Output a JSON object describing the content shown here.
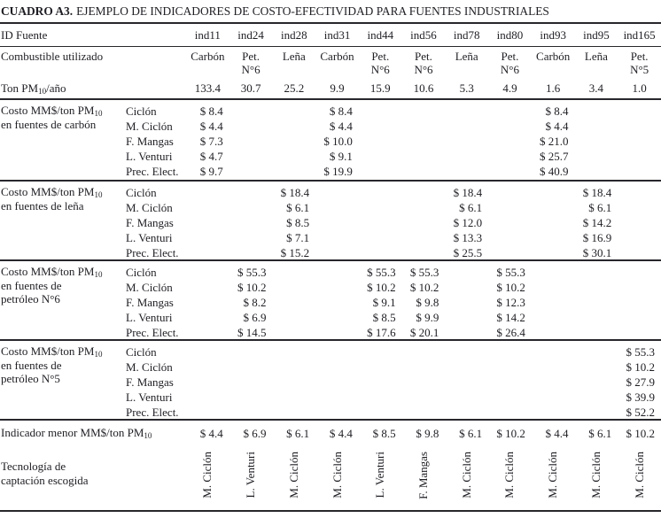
{
  "page": {
    "title_bold": "CUADRO A3.",
    "title_rest": "EJEMPLO DE INDICADORES DE COSTO-EFECTIVIDAD PARA FUENTES INDUSTRIALES"
  },
  "table": {
    "columns": [
      "ind11",
      "ind24",
      "ind28",
      "ind31",
      "ind44",
      "ind56",
      "ind78",
      "ind80",
      "ind93",
      "ind95",
      "ind165"
    ],
    "header": {
      "id_label": "ID Fuente",
      "fuel_label": "Combustible utilizado",
      "fuels": [
        [
          "Carbón"
        ],
        [
          "Pet.",
          "N°6"
        ],
        [
          "Leña"
        ],
        [
          "Carbón"
        ],
        [
          "Pet.",
          "N°6"
        ],
        [
          "Pet.",
          "N°6"
        ],
        [
          "Leña"
        ],
        [
          "Pet.",
          "N°6"
        ],
        [
          "Carbón"
        ],
        [
          "Leña"
        ],
        [
          "Pet.",
          "N°5"
        ]
      ],
      "ton_label": {
        "pre": "Ton PM",
        "sub": "10",
        "post": "/año"
      },
      "tons": [
        "133.4",
        "30.7",
        "25.2",
        "9.9",
        "15.9",
        "10.6",
        "5.3",
        "4.9",
        "1.6",
        "3.4",
        "1.0"
      ]
    },
    "sections": [
      {
        "label": {
          "pre": "Costo MM$/ton PM",
          "sub": "10",
          "rest": [
            "en fuentes de carbón"
          ]
        },
        "rows": [
          {
            "tech": "Ciclón",
            "values": [
              "$ 8.4",
              "",
              "",
              "$ 8.4",
              "",
              "",
              "",
              "",
              "$ 8.4",
              "",
              ""
            ]
          },
          {
            "tech": "M. Ciclón",
            "values": [
              "$ 4.4",
              "",
              "",
              "$ 4.4",
              "",
              "",
              "",
              "",
              "$ 4.4",
              "",
              ""
            ]
          },
          {
            "tech": "F. Mangas",
            "values": [
              "$ 7.3",
              "",
              "",
              "$ 10.0",
              "",
              "",
              "",
              "",
              "$ 21.0",
              "",
              ""
            ]
          },
          {
            "tech": "L. Venturi",
            "values": [
              "$ 4.7",
              "",
              "",
              "$ 9.1",
              "",
              "",
              "",
              "",
              "$ 25.7",
              "",
              ""
            ]
          },
          {
            "tech": "Prec. Elect.",
            "values": [
              "$ 9.7",
              "",
              "",
              "$ 19.9",
              "",
              "",
              "",
              "",
              "$ 40.9",
              "",
              ""
            ]
          }
        ]
      },
      {
        "label": {
          "pre": "Costo MM$/ton PM",
          "sub": "10",
          "rest": [
            "en fuentes de leña"
          ]
        },
        "rows": [
          {
            "tech": "Ciclón",
            "values": [
              "",
              "",
              "$ 18.4",
              "",
              "",
              "",
              "$ 18.4",
              "",
              "",
              "$ 18.4",
              ""
            ]
          },
          {
            "tech": "M. Ciclón",
            "values": [
              "",
              "",
              "$ 6.1",
              "",
              "",
              "",
              "$ 6.1",
              "",
              "",
              "$ 6.1",
              ""
            ]
          },
          {
            "tech": "F. Mangas",
            "values": [
              "",
              "",
              "$ 8.5",
              "",
              "",
              "",
              "$ 12.0",
              "",
              "",
              "$ 14.2",
              ""
            ]
          },
          {
            "tech": "L. Venturi",
            "values": [
              "",
              "",
              "$ 7.1",
              "",
              "",
              "",
              "$ 13.3",
              "",
              "",
              "$ 16.9",
              ""
            ]
          },
          {
            "tech": "Prec. Elect.",
            "values": [
              "",
              "",
              "$ 15.2",
              "",
              "",
              "",
              "$ 25.5",
              "",
              "",
              "$ 30.1",
              ""
            ]
          }
        ]
      },
      {
        "label": {
          "pre": "Costo MM$/ton PM",
          "sub": "10",
          "rest": [
            "en fuentes de",
            "petróleo N°6"
          ]
        },
        "rows": [
          {
            "tech": "Ciclón",
            "values": [
              "",
              "$ 55.3",
              "",
              "",
              "$ 55.3",
              "$ 55.3",
              "",
              "$ 55.3",
              "",
              "",
              ""
            ]
          },
          {
            "tech": "M. Ciclón",
            "values": [
              "",
              "$ 10.2",
              "",
              "",
              "$ 10.2",
              "$ 10.2",
              "",
              "$ 10.2",
              "",
              "",
              ""
            ]
          },
          {
            "tech": "F. Mangas",
            "values": [
              "",
              "$ 8.2",
              "",
              "",
              "$ 9.1",
              "$ 9.8",
              "",
              "$ 12.3",
              "",
              "",
              ""
            ]
          },
          {
            "tech": "L. Venturi",
            "values": [
              "",
              "$ 6.9",
              "",
              "",
              "$ 8.5",
              "$ 9.9",
              "",
              "$ 14.2",
              "",
              "",
              ""
            ]
          },
          {
            "tech": "Prec. Elect.",
            "values": [
              "",
              "$ 14.5",
              "",
              "",
              "$ 17.6",
              "$ 20.1",
              "",
              "$ 26.4",
              "",
              "",
              ""
            ]
          }
        ]
      },
      {
        "label": {
          "pre": "Costo MM$/ton PM",
          "sub": "10",
          "rest": [
            "en fuentes de",
            "petróleo N°5"
          ]
        },
        "rows": [
          {
            "tech": "Ciclón",
            "values": [
              "",
              "",
              "",
              "",
              "",
              "",
              "",
              "",
              "",
              "",
              "$ 55.3"
            ]
          },
          {
            "tech": "M. Ciclón",
            "values": [
              "",
              "",
              "",
              "",
              "",
              "",
              "",
              "",
              "",
              "",
              "$ 10.2"
            ]
          },
          {
            "tech": "F. Mangas",
            "values": [
              "",
              "",
              "",
              "",
              "",
              "",
              "",
              "",
              "",
              "",
              "$ 27.9"
            ]
          },
          {
            "tech": "L. Venturi",
            "values": [
              "",
              "",
              "",
              "",
              "",
              "",
              "",
              "",
              "",
              "",
              "$ 39.9"
            ]
          },
          {
            "tech": "Prec. Elect.",
            "values": [
              "",
              "",
              "",
              "",
              "",
              "",
              "",
              "",
              "",
              "",
              "$ 52.2"
            ]
          }
        ]
      }
    ],
    "indicator": {
      "label": {
        "pre": "Indicador menor MM$/ton PM",
        "sub": "10"
      },
      "values": [
        "$ 4.4",
        "$ 6.9",
        "$ 6.1",
        "$ 4.4",
        "$ 8.5",
        "$ 9.8",
        "$ 6.1",
        "$ 10.2",
        "$ 4.4",
        "$ 6.1",
        "$ 10.2"
      ]
    },
    "technology": {
      "label_lines": [
        "Tecnología de",
        "captación escogida"
      ],
      "values": [
        "M. Ciclón",
        "L. Venturi",
        "M. Ciclón",
        "M. Ciclón",
        "L. Venturi",
        "F. Mangas",
        "M. Ciclón",
        "M. Ciclón",
        "M. Ciclón",
        "M. Ciclón",
        "M. Ciclón"
      ]
    }
  }
}
